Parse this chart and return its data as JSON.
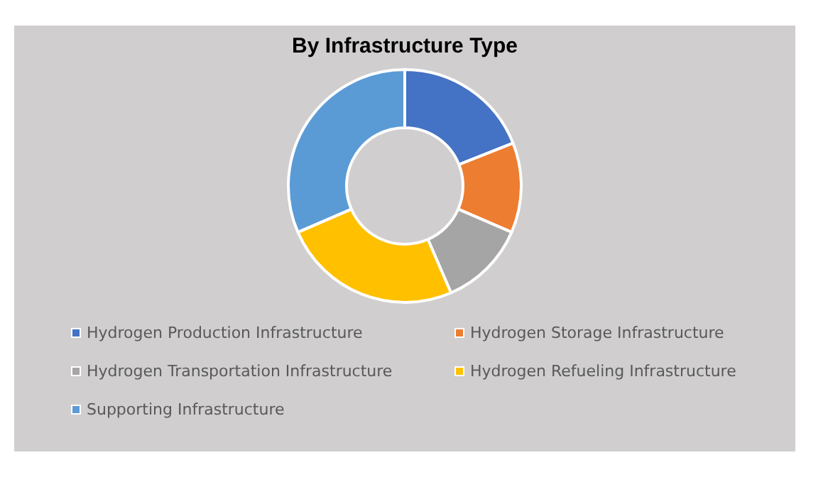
{
  "chart_data": {
    "type": "donut",
    "title": "By Infrastructure Type",
    "categories": [
      "Hydrogen Production Infrastructure",
      "Hydrogen Storage Infrastructure",
      "Hydrogen Transportation Infrastructure",
      "Hydrogen Refueling Infrastructure",
      "Supporting Infrastructure"
    ],
    "values": [
      19,
      12.5,
      12,
      25,
      31.5
    ],
    "colors": [
      "#4472c4",
      "#ed7d31",
      "#a5a5a5",
      "#ffc000",
      "#5b9bd5"
    ],
    "legend": "bottom"
  }
}
